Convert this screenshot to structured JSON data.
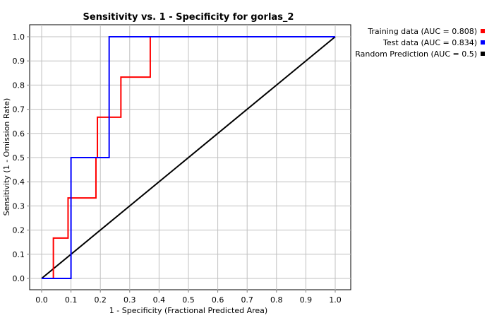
{
  "chart_data": {
    "type": "line",
    "title": "Sensitivity vs. 1 - Specificity for gorlas_2",
    "xlabel": "1 - Specificity  (Fractional Predicted Area)",
    "ylabel": "Sensitivity  (1 - Omission Rate)",
    "xlim": [
      0.0,
      1.0
    ],
    "ylim": [
      0.0,
      1.0
    ],
    "x_ticks": [
      "0.0",
      "0.1",
      "0.2",
      "0.3",
      "0.4",
      "0.5",
      "0.6",
      "0.7",
      "0.8",
      "0.9",
      "1.0"
    ],
    "y_ticks": [
      "0.0",
      "0.1",
      "0.2",
      "0.3",
      "0.4",
      "0.5",
      "0.6",
      "0.7",
      "0.8",
      "0.9",
      "1.0"
    ],
    "grid": true,
    "legend_position": "top-right, outside plot",
    "series": [
      {
        "name": "Training data (AUC = 0.808)",
        "color": "#ff0000",
        "points": [
          [
            0.0,
            0.0
          ],
          [
            0.04,
            0.0
          ],
          [
            0.04,
            0.167
          ],
          [
            0.09,
            0.167
          ],
          [
            0.09,
            0.333
          ],
          [
            0.185,
            0.333
          ],
          [
            0.185,
            0.5
          ],
          [
            0.19,
            0.5
          ],
          [
            0.19,
            0.667
          ],
          [
            0.27,
            0.667
          ],
          [
            0.27,
            0.833
          ],
          [
            0.37,
            0.833
          ],
          [
            0.37,
            1.0
          ],
          [
            1.0,
            1.0
          ]
        ]
      },
      {
        "name": "Test data (AUC = 0.834)",
        "color": "#0000ff",
        "points": [
          [
            0.0,
            0.0
          ],
          [
            0.1,
            0.0
          ],
          [
            0.1,
            0.5
          ],
          [
            0.23,
            0.5
          ],
          [
            0.23,
            1.0
          ],
          [
            1.0,
            1.0
          ]
        ]
      },
      {
        "name": "Random Prediction (AUC = 0.5)",
        "color": "#000000",
        "points": [
          [
            0.0,
            0.0
          ],
          [
            1.0,
            1.0
          ]
        ]
      }
    ]
  }
}
